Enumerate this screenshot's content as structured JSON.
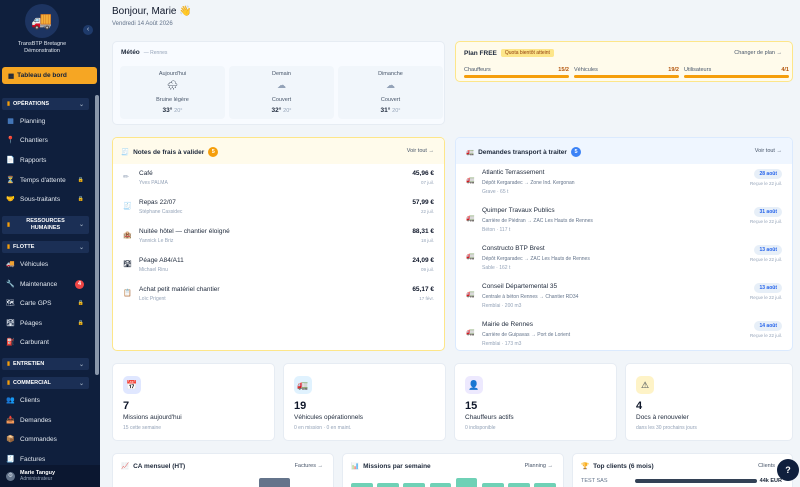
{
  "sidebar": {
    "company_line1": "TransBTP Bretagne",
    "company_line2": "Démonstration",
    "collapse_glyph": "‹",
    "active_item": "Tableau de bord",
    "sections": {
      "operations": "OPÉRATIONS",
      "resources": "RESSOURCES HUMAINES",
      "flotte": "FLOTTE",
      "entretien": "ENTRETIEN",
      "commercial": "COMMERCIAL"
    },
    "items": {
      "planning": "Planning",
      "chantiers": "Chantiers",
      "rapports": "Rapports",
      "temps_attente": "Temps d'attente",
      "sous_traitants": "Sous-traitants",
      "vehicules": "Véhicules",
      "maintenance": "Maintenance",
      "maintenance_badge": "4",
      "carte_gps": "Carte GPS",
      "peages": "Péages",
      "carburant": "Carburant",
      "clients": "Clients",
      "demandes": "Demandes",
      "commandes": "Commandes",
      "factures": "Factures"
    },
    "user": {
      "name": "Marie Tanguy",
      "role": "Administrateur"
    }
  },
  "header": {
    "greeting": "Bonjour, Marie 👋",
    "date": "Vendredi 14 Août 2026"
  },
  "meteo": {
    "title": "Météo",
    "location": "— Rennes",
    "days": [
      {
        "day": "Aujourd'hui",
        "icon": "🌧",
        "desc": "Bruine légère",
        "high": "33°",
        "low": "20°"
      },
      {
        "day": "Demain",
        "icon": "☁",
        "desc": "Couvert",
        "high": "32°",
        "low": "20°"
      },
      {
        "day": "Dimanche",
        "icon": "☁",
        "desc": "Couvert",
        "high": "31°",
        "low": "20°"
      }
    ]
  },
  "plan": {
    "title": "Plan FREE",
    "tag": "Quota bientôt atteint",
    "change_link": "Changer de plan →",
    "quotas": [
      {
        "label": "Chauffeurs",
        "value": "15/2"
      },
      {
        "label": "Véhicules",
        "value": "19/2"
      },
      {
        "label": "Utilisateurs",
        "value": "4/1"
      }
    ]
  },
  "notes": {
    "title": "Notes de frais à valider",
    "count": "5",
    "link": "Voir tout →",
    "items": [
      {
        "title": "Café",
        "person": "Yves PALMA",
        "amount": "45,96 €",
        "date": "07 juil.",
        "icon": "✏"
      },
      {
        "title": "Repas 22/07",
        "person": "Stéphane Cassidec",
        "amount": "57,99 €",
        "date": "22 juil.",
        "icon": "🧾"
      },
      {
        "title": "Nuitée hôtel — chantier éloigné",
        "person": "Yannick Le Briz",
        "amount": "88,31 €",
        "date": "18 juil.",
        "icon": "🏨"
      },
      {
        "title": "Péage A84/A11",
        "person": "Michael Rinu",
        "amount": "24,09 €",
        "date": "09 juil.",
        "icon": "🛣"
      },
      {
        "title": "Achat petit matériel chantier",
        "person": "Loïc Prigent",
        "amount": "65,17 €",
        "date": "17 févr.",
        "icon": "📋"
      }
    ]
  },
  "transport": {
    "title": "Demandes transport à traiter",
    "count": "5",
    "link": "Voir tout →",
    "items": [
      {
        "client": "Atlantic Terrassement",
        "route": "Dépôt Kergaradec → Zone Ind. Kergonan",
        "cargo": "Grave · 65 t",
        "date": "28 août",
        "req": "Reçue le 22 juil."
      },
      {
        "client": "Quimper Travaux Publics",
        "route": "Carrière de Piédran → ZAC Les Hauts de Rennes",
        "cargo": "Béton · 117 t",
        "date": "31 août",
        "req": "Reçue le 22 juil."
      },
      {
        "client": "Constructo BTP Brest",
        "route": "Dépôt Kergaradec → ZAC Les Hauts de Rennes",
        "cargo": "Sable · 162 t",
        "date": "13 août",
        "req": "Reçue le 22 juil."
      },
      {
        "client": "Conseil Départemental 35",
        "route": "Centrale à béton Rennes → Chantier RD34",
        "cargo": "Remblai · 200 m3",
        "date": "13 août",
        "req": "Reçue le 22 juil."
      },
      {
        "client": "Mairie de Rennes",
        "route": "Carrière de Guipavas → Port de Lorient",
        "cargo": "Remblai · 173 m3",
        "date": "14 août",
        "req": "Reçue le 22 juil."
      }
    ]
  },
  "kpis": [
    {
      "icon": "📅",
      "value": "7",
      "label": "Missions aujourd'hui",
      "sub": "15 cette semaine",
      "bg": "#e0e7ff"
    },
    {
      "icon": "🚛",
      "value": "19",
      "label": "Véhicules opérationnels",
      "sub": "0 en mission · 0 en maint.",
      "bg": "#e0f2fe"
    },
    {
      "icon": "👤",
      "value": "15",
      "label": "Chauffeurs actifs",
      "sub": "0 indisponible",
      "bg": "#ede9fe"
    },
    {
      "icon": "⚠",
      "value": "4",
      "label": "Docs à renouveler",
      "sub": "dans les 30 prochains jours",
      "bg": "#fef3c7"
    }
  ],
  "bottom": {
    "ca": {
      "title": "CA mensuel (HT)",
      "link": "Factures →",
      "icon": "📈"
    },
    "missions": {
      "title": "Missions par semaine",
      "link": "Planning →",
      "icon": "📊"
    },
    "clients": {
      "title": "Top clients (6 mois)",
      "link": "Clients →",
      "icon": "🏆",
      "first_name": "TEST SAS",
      "first_value": "44k EUR"
    }
  },
  "help_label": "?",
  "colors": {
    "sidebar": "#0f1f3d",
    "accent": "#f6a623",
    "mission_bar": "#6fd1b6"
  },
  "chart_data": [
    {
      "type": "bar",
      "title": "Missions par semaine",
      "values": [
        2,
        2,
        2,
        2,
        3,
        2,
        2,
        2
      ]
    }
  ]
}
